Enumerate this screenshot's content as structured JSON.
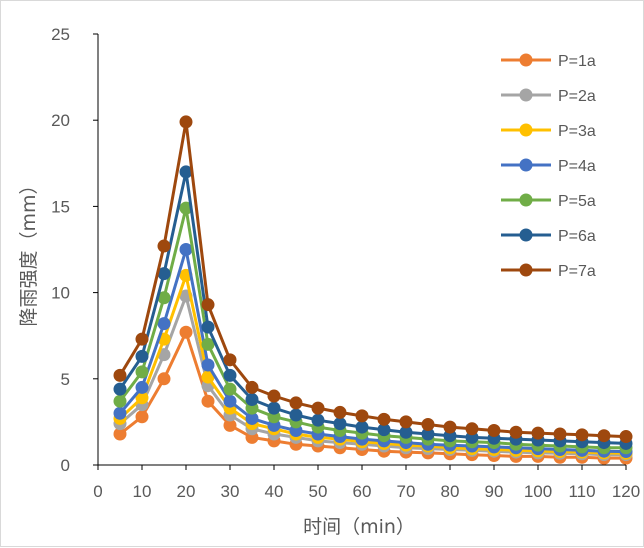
{
  "chart_data": {
    "type": "line",
    "title": "",
    "xlabel": "时间（min）",
    "ylabel": "降雨强度（mm）",
    "xlim": [
      0,
      120
    ],
    "ylim": [
      0,
      25
    ],
    "xticks": [
      0,
      10,
      20,
      30,
      40,
      50,
      60,
      70,
      80,
      90,
      100,
      110,
      120
    ],
    "yticks": [
      0,
      5,
      10,
      15,
      20,
      25
    ],
    "grid": false,
    "legend_position": "right",
    "x": [
      5,
      10,
      15,
      20,
      25,
      30,
      35,
      40,
      45,
      50,
      55,
      60,
      65,
      70,
      75,
      80,
      85,
      90,
      95,
      100,
      105,
      110,
      115,
      120
    ],
    "series": [
      {
        "name": "P=1a",
        "color": "#ED7D31",
        "values": [
          1.8,
          2.8,
          5.0,
          7.7,
          3.7,
          2.3,
          1.6,
          1.4,
          1.2,
          1.1,
          1.0,
          0.9,
          0.8,
          0.75,
          0.7,
          0.65,
          0.6,
          0.55,
          0.5,
          0.5,
          0.45,
          0.45,
          0.4,
          0.4
        ]
      },
      {
        "name": "P=2a",
        "color": "#A5A5A5",
        "values": [
          2.4,
          3.5,
          6.4,
          9.8,
          4.6,
          2.9,
          2.1,
          1.8,
          1.6,
          1.4,
          1.3,
          1.2,
          1.1,
          1.0,
          0.95,
          0.9,
          0.85,
          0.8,
          0.75,
          0.7,
          0.68,
          0.65,
          0.6,
          0.6
        ]
      },
      {
        "name": "P=3a",
        "color": "#FFC000",
        "values": [
          2.7,
          3.9,
          7.3,
          11.0,
          5.1,
          3.3,
          2.4,
          2.1,
          1.8,
          1.6,
          1.5,
          1.35,
          1.25,
          1.15,
          1.1,
          1.0,
          0.95,
          0.9,
          0.85,
          0.82,
          0.78,
          0.75,
          0.7,
          0.68
        ]
      },
      {
        "name": "P=4a",
        "color": "#4472C4",
        "values": [
          3.0,
          4.5,
          8.2,
          12.5,
          5.8,
          3.7,
          2.7,
          2.3,
          2.0,
          1.8,
          1.65,
          1.5,
          1.4,
          1.3,
          1.2,
          1.15,
          1.1,
          1.05,
          1.0,
          0.95,
          0.9,
          0.85,
          0.8,
          0.78
        ]
      },
      {
        "name": "P=5a",
        "color": "#70AD47",
        "values": [
          3.7,
          5.4,
          9.7,
          14.9,
          7.0,
          4.4,
          3.3,
          2.8,
          2.5,
          2.2,
          2.0,
          1.85,
          1.7,
          1.6,
          1.5,
          1.4,
          1.35,
          1.3,
          1.2,
          1.15,
          1.1,
          1.05,
          1.0,
          1.0
        ]
      },
      {
        "name": "P=6a",
        "color": "#255E91",
        "values": [
          4.4,
          6.3,
          11.1,
          17.0,
          8.0,
          5.2,
          3.8,
          3.3,
          2.9,
          2.6,
          2.4,
          2.2,
          2.05,
          1.9,
          1.8,
          1.7,
          1.6,
          1.55,
          1.5,
          1.45,
          1.4,
          1.35,
          1.3,
          1.25
        ]
      },
      {
        "name": "P=7a",
        "color": "#9E480E",
        "values": [
          5.2,
          7.3,
          12.7,
          19.9,
          9.3,
          6.1,
          4.5,
          4.0,
          3.6,
          3.3,
          3.05,
          2.85,
          2.65,
          2.5,
          2.35,
          2.2,
          2.1,
          2.0,
          1.9,
          1.85,
          1.8,
          1.75,
          1.7,
          1.65
        ]
      }
    ]
  }
}
